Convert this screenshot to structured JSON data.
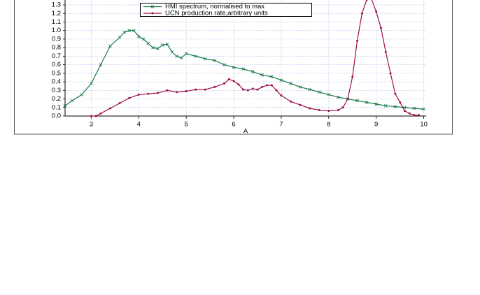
{
  "chart_data": {
    "type": "line",
    "x_label": "A",
    "xlim": [
      2.45,
      10.05
    ],
    "ylim": [
      0,
      1.4
    ],
    "xticks": [
      3,
      4,
      5,
      6,
      7,
      8,
      9,
      10
    ],
    "yticks": [
      {
        "value": 0,
        "label": "0.0"
      },
      0.1,
      0.2,
      0.3,
      0.4,
      0.5,
      0.6,
      0.7,
      0.8,
      0.9,
      {
        "value": 1,
        "label": "1.0"
      },
      1.1,
      1.2,
      1.3
    ],
    "grid": true,
    "legend": "top",
    "series": [
      {
        "name": "HMI spectrum, normalised to max",
        "color": "#1a7a4a",
        "marker": "x",
        "x": [
          2.45,
          2.6,
          2.8,
          3.0,
          3.2,
          3.4,
          3.6,
          3.7,
          3.8,
          3.9,
          4.0,
          4.1,
          4.2,
          4.3,
          4.4,
          4.5,
          4.6,
          4.7,
          4.8,
          4.9,
          5.0,
          5.2,
          5.4,
          5.6,
          5.8,
          6.0,
          6.2,
          6.4,
          6.6,
          6.8,
          7.0,
          7.2,
          7.4,
          7.6,
          7.8,
          8.0,
          8.2,
          8.4,
          8.6,
          8.8,
          9.0,
          9.2,
          9.4,
          9.6,
          9.8,
          10.0
        ],
        "values": [
          0.12,
          0.18,
          0.25,
          0.38,
          0.6,
          0.82,
          0.92,
          0.98,
          1.0,
          1.0,
          0.93,
          0.9,
          0.85,
          0.8,
          0.79,
          0.83,
          0.84,
          0.75,
          0.7,
          0.68,
          0.73,
          0.7,
          0.67,
          0.65,
          0.6,
          0.57,
          0.55,
          0.52,
          0.48,
          0.46,
          0.42,
          0.38,
          0.34,
          0.31,
          0.28,
          0.25,
          0.22,
          0.2,
          0.18,
          0.16,
          0.14,
          0.12,
          0.11,
          0.1,
          0.09,
          0.08
        ]
      },
      {
        "name": "UCN production rate,arbitrary units",
        "color": "#a0104a",
        "marker": "dot",
        "x": [
          3.0,
          3.1,
          3.2,
          3.4,
          3.6,
          3.8,
          4.0,
          4.2,
          4.4,
          4.6,
          4.8,
          5.0,
          5.2,
          5.4,
          5.6,
          5.8,
          5.9,
          6.0,
          6.1,
          6.2,
          6.3,
          6.4,
          6.5,
          6.6,
          6.7,
          6.8,
          6.9,
          7.0,
          7.2,
          7.4,
          7.6,
          7.8,
          8.0,
          8.2,
          8.3,
          8.4,
          8.5,
          8.6,
          8.7,
          8.8,
          8.9,
          9.0,
          9.1,
          9.2,
          9.3,
          9.4,
          9.5,
          9.6,
          9.7,
          9.8,
          9.9
        ],
        "values": [
          0,
          0,
          0.03,
          0.09,
          0.15,
          0.21,
          0.25,
          0.26,
          0.27,
          0.3,
          0.28,
          0.29,
          0.31,
          0.31,
          0.34,
          0.38,
          0.43,
          0.41,
          0.37,
          0.31,
          0.3,
          0.32,
          0.31,
          0.34,
          0.36,
          0.36,
          0.3,
          0.24,
          0.17,
          0.13,
          0.09,
          0.07,
          0.06,
          0.07,
          0.1,
          0.2,
          0.46,
          0.88,
          1.2,
          1.36,
          1.37,
          1.22,
          1.03,
          0.75,
          0.5,
          0.26,
          0.16,
          0.06,
          0.03,
          0.01,
          0.01
        ]
      }
    ]
  }
}
